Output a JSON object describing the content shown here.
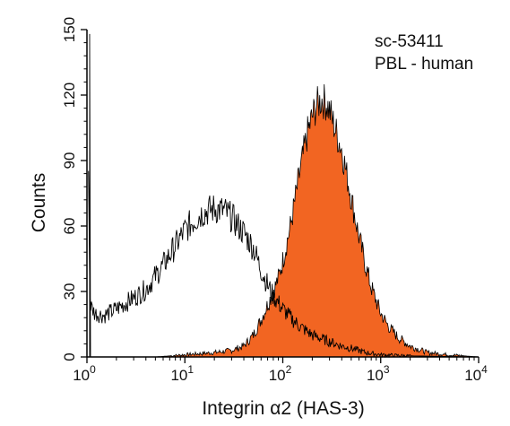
{
  "chart_data": {
    "type": "area",
    "x_scale": "log",
    "xlim": [
      1,
      10000
    ],
    "ylim": [
      0,
      150
    ],
    "grid": false,
    "xlabel": "Integrin α2 (HAS-3)",
    "ylabel": "Counts",
    "x_ticks": [
      {
        "value": 1,
        "base": "10",
        "exp": "0"
      },
      {
        "value": 10,
        "base": "10",
        "exp": "1"
      },
      {
        "value": 100,
        "base": "10",
        "exp": "2"
      },
      {
        "value": 1000,
        "base": "10",
        "exp": "3"
      },
      {
        "value": 10000,
        "base": "10",
        "exp": "4"
      }
    ],
    "y_ticks": [
      {
        "value": 0,
        "label": "0"
      },
      {
        "value": 30,
        "label": "30"
      },
      {
        "value": 60,
        "label": "60"
      },
      {
        "value": 90,
        "label": "90"
      },
      {
        "value": 120,
        "label": "120"
      },
      {
        "value": 150,
        "label": "150"
      }
    ],
    "annotations": [
      "sc-53411",
      "PBL - human"
    ],
    "series": [
      {
        "role": "control (unfilled outline)",
        "color": "#000000",
        "fill": "none",
        "x": [
          1.0,
          1.08,
          1.2,
          1.5,
          2,
          3,
          4,
          5,
          6,
          8,
          10,
          12,
          15,
          20,
          25,
          30,
          35,
          40,
          50,
          60,
          70,
          80,
          100,
          120,
          150,
          200,
          300,
          400,
          500,
          700,
          1000,
          2000,
          5000,
          10000
        ],
        "y": [
          150,
          24,
          20,
          19,
          22,
          27,
          31,
          37,
          42,
          51,
          58,
          62,
          66,
          68,
          67,
          64,
          60,
          57,
          50,
          40,
          33,
          28,
          22,
          18,
          14,
          10,
          7,
          5,
          4,
          2,
          1,
          0.5,
          0.2,
          0
        ]
      },
      {
        "role": "Integrin α2 (HAS-3) stained (filled)",
        "color": "#f26522",
        "fill": "#f26522",
        "x": [
          1,
          5,
          10,
          20,
          30,
          40,
          50,
          60,
          70,
          80,
          90,
          100,
          120,
          150,
          180,
          200,
          220,
          250,
          280,
          300,
          350,
          400,
          500,
          600,
          700,
          800,
          1000,
          1200,
          1500,
          2000,
          3000,
          5000,
          10000
        ],
        "y": [
          0,
          0,
          1,
          2,
          3,
          5,
          10,
          17,
          24,
          30,
          36,
          44,
          60,
          85,
          103,
          110,
          115,
          118,
          116,
          113,
          103,
          95,
          73,
          55,
          42,
          32,
          20,
          14,
          9,
          5,
          2,
          1,
          0
        ]
      }
    ]
  }
}
